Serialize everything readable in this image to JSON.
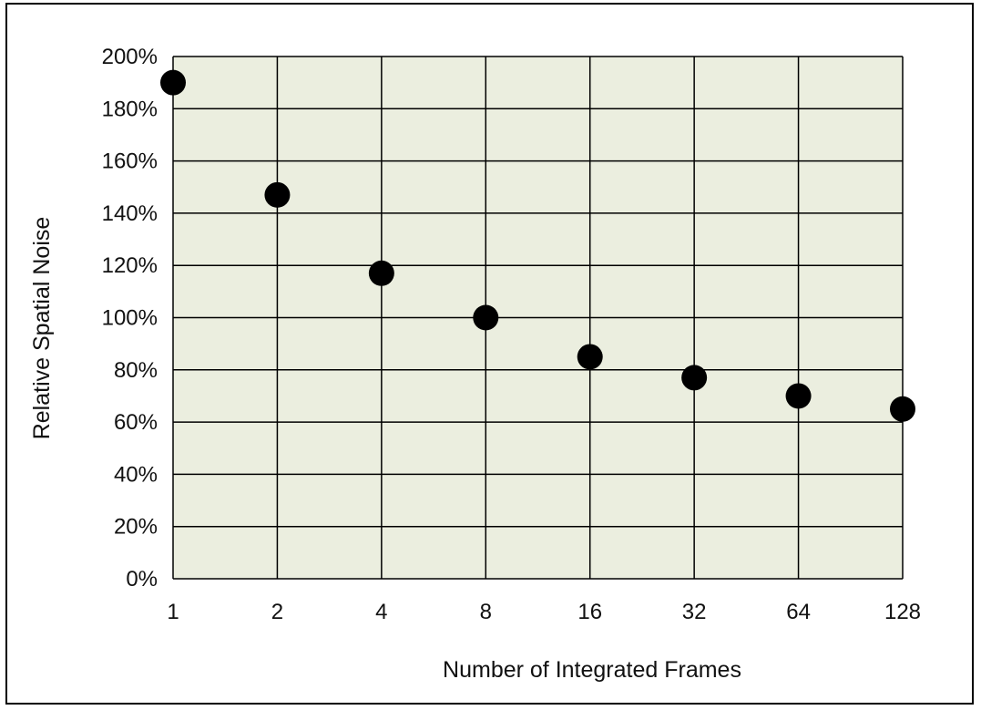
{
  "chart_data": {
    "type": "scatter",
    "title": "",
    "xlabel": "Number of Integrated Frames",
    "ylabel": "Relative Spatial Noise",
    "x_scale": "log2",
    "categories": [
      "1",
      "2",
      "4",
      "8",
      "16",
      "32",
      "64",
      "128"
    ],
    "x": [
      1,
      2,
      4,
      8,
      16,
      32,
      64,
      128
    ],
    "y": [
      190,
      147,
      117,
      100,
      85,
      77,
      70,
      65
    ],
    "y_unit": "%",
    "ylim": [
      0,
      200
    ],
    "y_ticks": [
      "0%",
      "20%",
      "40%",
      "60%",
      "80%",
      "100%",
      "120%",
      "140%",
      "160%",
      "180%",
      "200%"
    ],
    "grid": true,
    "legend": "none",
    "colors": {
      "plot_background": "#ebeedf",
      "marker": "#000000",
      "grid": "#000000"
    }
  }
}
